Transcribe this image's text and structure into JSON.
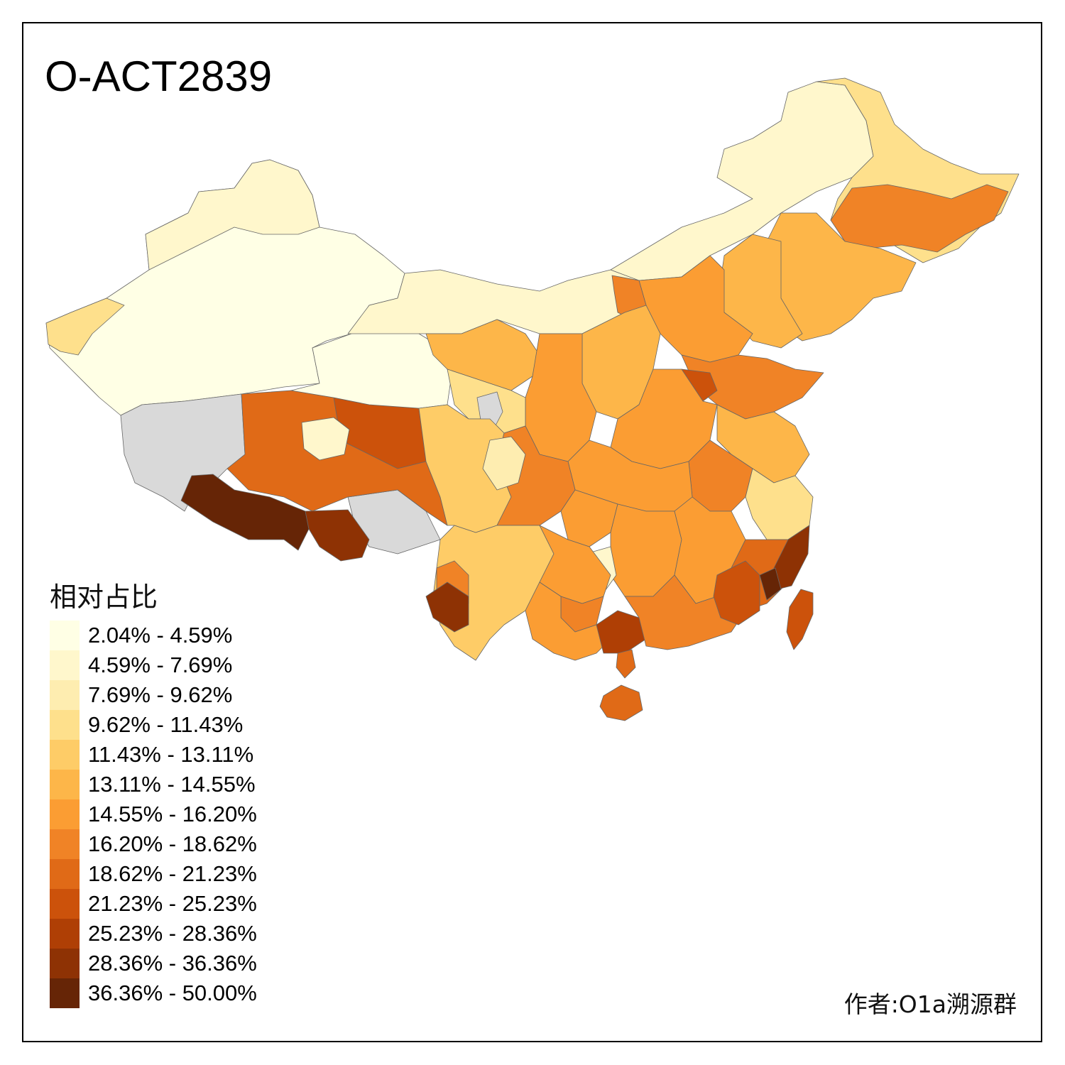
{
  "title": "O-ACT2839",
  "legend": {
    "title": "相对占比",
    "items": [
      {
        "label": "2.04% - 4.59%",
        "color": "#FFFFE5"
      },
      {
        "label": "4.59% - 7.69%",
        "color": "#FFF7CC"
      },
      {
        "label": "7.69% - 9.62%",
        "color": "#FEEDB0"
      },
      {
        "label": "9.62% - 11.43%",
        "color": "#FEE08C"
      },
      {
        "label": "11.43% - 13.11%",
        "color": "#FECC67"
      },
      {
        "label": "13.11% - 14.55%",
        "color": "#FDB649"
      },
      {
        "label": "14.55% - 16.20%",
        "color": "#FB9D33"
      },
      {
        "label": "16.20% - 18.62%",
        "color": "#F08326"
      },
      {
        "label": "18.62% - 21.23%",
        "color": "#E06A17"
      },
      {
        "label": "21.23% - 25.23%",
        "color": "#CC520B"
      },
      {
        "label": "25.23% - 28.36%",
        "color": "#AF3F05"
      },
      {
        "label": "28.36% - 36.36%",
        "color": "#8E3204"
      },
      {
        "label": "36.36% - 50.00%",
        "color": "#662506"
      }
    ]
  },
  "no_data_color": "#D9D9D9",
  "credit": "作者:O1a溯源群"
}
